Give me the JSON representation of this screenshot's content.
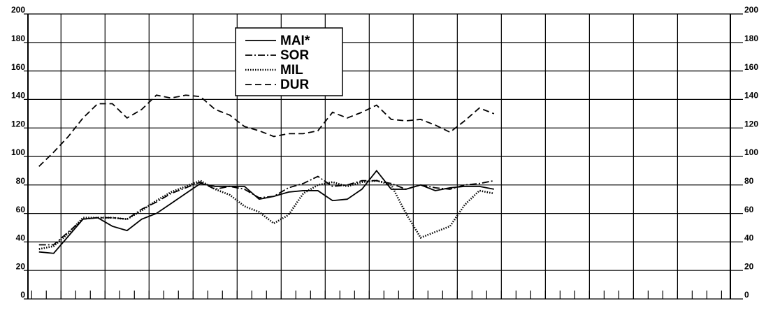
{
  "chart_data": {
    "type": "line",
    "xlim": [
      -2.25,
      45.6
    ],
    "xticks": [
      -2,
      -1,
      0,
      1,
      2,
      3,
      4,
      5,
      6,
      7,
      8,
      9,
      10,
      11,
      12,
      13,
      14,
      15,
      16,
      17,
      18,
      19,
      20,
      21,
      22,
      23,
      24,
      25,
      26,
      27,
      28,
      29,
      30,
      31,
      32,
      33,
      34,
      35,
      36,
      37,
      38,
      39,
      40,
      41,
      42,
      43,
      44,
      45
    ],
    "xgrid": [
      0,
      3,
      6,
      9,
      12,
      15,
      18,
      21,
      24,
      27,
      30,
      33,
      36,
      39,
      42
    ],
    "ylim": [
      0,
      200
    ],
    "yticks": [
      0,
      20,
      40,
      60,
      80,
      100,
      120,
      140,
      160,
      180,
      200
    ],
    "y2lim": [
      0,
      200
    ],
    "y2ticks": [
      0,
      20,
      40,
      60,
      80,
      100,
      120,
      140,
      160,
      180,
      200
    ],
    "grid": true,
    "legend": "top-center",
    "x": [
      -1.5,
      -0.5,
      0.5,
      1.5,
      2.5,
      3.5,
      4.5,
      5.5,
      6.5,
      7.5,
      8.5,
      9.5,
      10.5,
      11.5,
      12.5,
      13.5,
      14.5,
      15.5,
      16.5,
      17.5,
      18.5,
      19.5,
      20.5,
      21.5,
      22.5,
      23.5,
      24.5,
      25.5,
      26.5,
      27.5,
      28.5,
      29.5
    ],
    "series": [
      {
        "name": "MAI*",
        "color": "#000000",
        "dash": "solid",
        "values": [
          33,
          32,
          44,
          56,
          57,
          51,
          48,
          56,
          60,
          67,
          74,
          81,
          79,
          79,
          79,
          70,
          72,
          75,
          76,
          76,
          69,
          70,
          77,
          90,
          77,
          77,
          80,
          76,
          78,
          79,
          79,
          77
        ]
      },
      {
        "name": "SOR",
        "color": "#000000",
        "dash": "dashdot",
        "values": [
          38,
          38,
          47,
          56,
          57,
          57,
          56,
          63,
          68,
          74,
          78,
          82,
          77,
          79,
          77,
          71,
          72,
          78,
          81,
          86,
          79,
          80,
          83,
          83,
          81,
          77,
          80,
          78,
          77,
          80,
          81,
          83
        ]
      },
      {
        "name": "MIL",
        "color": "#000000",
        "dash": "dotted",
        "values": [
          35,
          37,
          46,
          57,
          57,
          57,
          56,
          62,
          69,
          75,
          79,
          83,
          77,
          73,
          65,
          61,
          53,
          59,
          74,
          80,
          82,
          79,
          82,
          83,
          80,
          60,
          43,
          47,
          51,
          66,
          76,
          74
        ]
      },
      {
        "name": "DUR",
        "color": "#000000",
        "dash": "dashed",
        "values": [
          93,
          103,
          114,
          127,
          137,
          137,
          127,
          133,
          143,
          141,
          143,
          142,
          133,
          129,
          121,
          118,
          114,
          116,
          116,
          118,
          131,
          127,
          131,
          136,
          126,
          125,
          126,
          122,
          117,
          125,
          134,
          130
        ]
      }
    ]
  }
}
